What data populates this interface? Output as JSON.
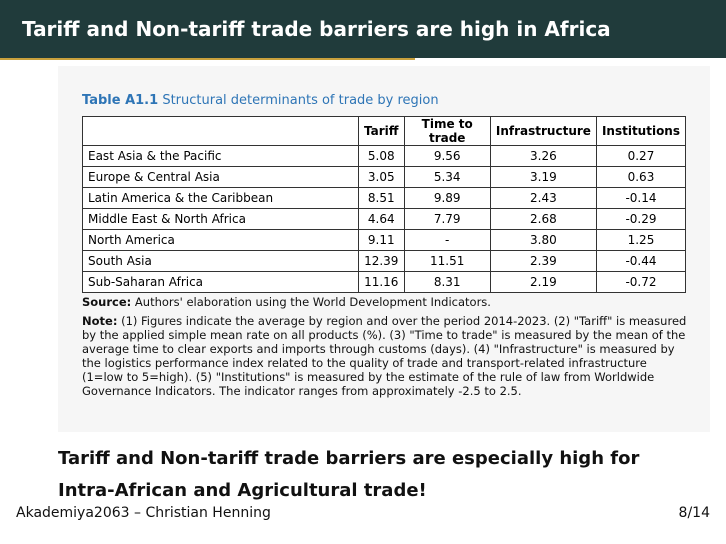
{
  "header": {
    "title": "Tariff and Non-tariff trade barriers are high in Africa"
  },
  "table": {
    "label": "Table A1.1",
    "title": "Structural determinants of trade by region",
    "columns": [
      "",
      "Tariff",
      "Time to trade",
      "Infrastructure",
      "Institutions"
    ],
    "rows": [
      [
        "East Asia & the Pacific",
        "5.08",
        "9.56",
        "3.26",
        "0.27"
      ],
      [
        "Europe & Central Asia",
        "3.05",
        "5.34",
        "3.19",
        "0.63"
      ],
      [
        "Latin America & the Caribbean",
        "8.51",
        "9.89",
        "2.43",
        "-0.14"
      ],
      [
        "Middle East & North Africa",
        "4.64",
        "7.79",
        "2.68",
        "-0.29"
      ],
      [
        "North America",
        "9.11",
        "-",
        "3.80",
        "1.25"
      ],
      [
        "South Asia",
        "12.39",
        "11.51",
        "2.39",
        "-0.44"
      ],
      [
        "Sub-Saharan Africa",
        "11.16",
        "8.31",
        "2.19",
        "-0.72"
      ]
    ],
    "source_label": "Source:",
    "source": "Authors' elaboration using the World Development Indicators.",
    "note_label": "Note:",
    "note": "(1) Figures indicate the average by region and over the period 2014-2023. (2) \"Tariff\" is measured by the applied simple mean rate on all products (%). (3) \"Time to trade\" is measured by the mean of the average time to clear exports and imports through customs (days). (4) \"Infrastructure\" is measured by the logistics performance index related to the quality of trade and transport-related infrastructure (1=low to 5=high). (5) \"Institutions\" is measured by the estimate of the rule of law from Worldwide Governance Indicators. The indicator ranges from approximately -2.5 to 2.5."
  },
  "caption": {
    "lines": [
      "Tariff and Non-tariff trade barriers are especially high for",
      "Intra-African and Agricultural trade!"
    ]
  },
  "footer": {
    "left": "Akademiya2063 – Christian Henning",
    "right": "8/14"
  }
}
